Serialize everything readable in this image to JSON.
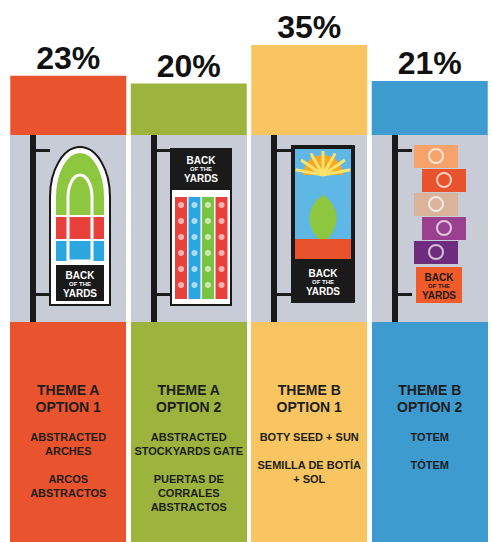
{
  "chart_data": {
    "type": "bar",
    "categories": [
      "THEME A OPTION 1",
      "THEME A OPTION 2",
      "THEME B OPTION 1",
      "THEME B OPTION 2"
    ],
    "values": [
      23,
      20,
      35,
      21
    ],
    "value_labels": [
      "23%",
      "20%",
      "35%",
      "21%"
    ],
    "colors": [
      "#e9532d",
      "#9cb43d",
      "#f8c560",
      "#3d9bd0"
    ],
    "descriptions_en": [
      "ABSTRACTED ARCHES",
      "ABSTRACTED STOCKYARDS GATE",
      "BOTY SEED + SUN",
      "TOTEM"
    ],
    "descriptions_es": [
      "ARCOS ABSTRACTOS",
      "PUERTAS DE CORRALES ABSTRACTOS",
      "SEMILLA DE BOTÍA + SOL",
      "TÓTEM"
    ],
    "banner_text": "BACK OF THE YARDS",
    "ylim": [
      0,
      35
    ],
    "yticks": [
      0,
      35
    ],
    "grid": false,
    "tick_labels": false,
    "data_labels": true
  }
}
